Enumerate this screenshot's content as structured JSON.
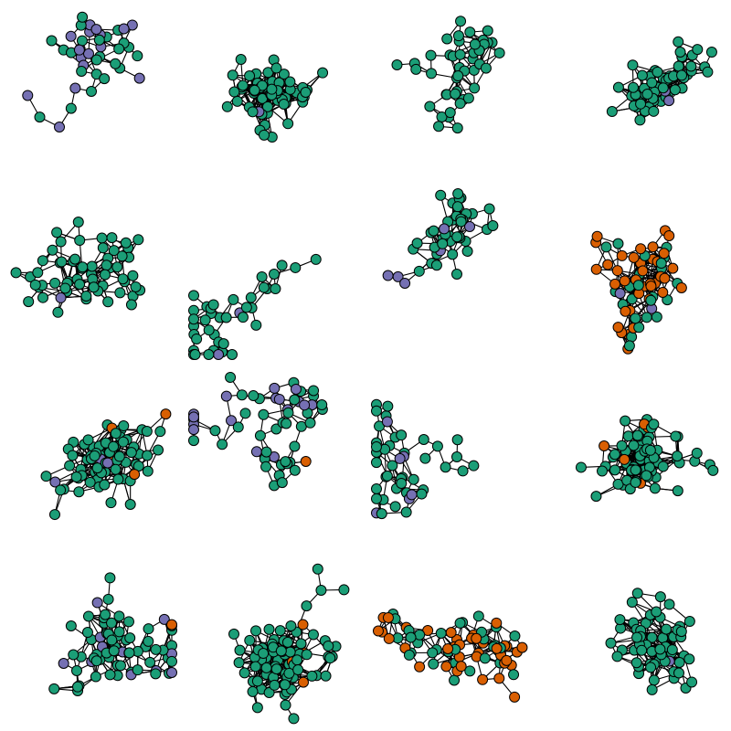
{
  "node_colors": [
    "#1b9e77",
    "#7570b3",
    "#d95f02"
  ]
}
